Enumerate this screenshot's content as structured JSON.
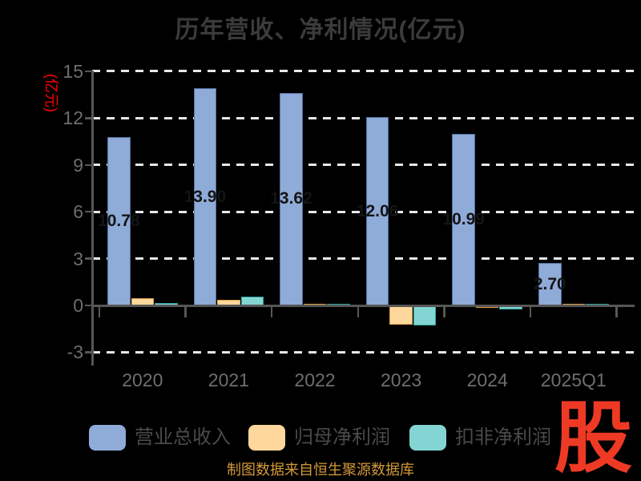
{
  "title": "历年营收、净利情况(亿元)",
  "y_axis_name": "(亿元)",
  "caption": "制图数据来自恒生聚源数据库",
  "logo_text": "股",
  "legend": {
    "items": [
      {
        "label": "营业总收入"
      },
      {
        "label": "归母净利润"
      },
      {
        "label": "扣非净利润"
      }
    ]
  },
  "colors": {
    "background": "#000000",
    "title": "#3b3b3b",
    "axis": "#565656",
    "tick_label": "#6e6e6e",
    "gridline": "#e8e8e8",
    "y_axis_name": "#ff0000",
    "caption": "#d49a3a",
    "logo": "#ee3a24",
    "value_label": "#141414",
    "legend_text": "#4a4a4a",
    "revenue_fill": "#8fabd8",
    "revenue_border": "#51719f",
    "profit_fill": "#fdd79b",
    "profit_border": "#dda04a",
    "deducted_fill": "#82d5d2",
    "deducted_border": "#2fa3a0"
  },
  "chart_data": {
    "type": "bar",
    "title": "历年营收、净利情况(亿元)",
    "ylabel": "(亿元)",
    "categories": [
      "2020",
      "2021",
      "2022",
      "2023",
      "2024",
      "2025Q1"
    ],
    "series": [
      {
        "name": "营业总收入",
        "values": [
          10.78,
          13.9,
          13.62,
          12.06,
          10.99,
          2.7
        ],
        "labels": [
          "10.78",
          "13.90",
          "13.62",
          "12.06",
          "10.99",
          "2.70"
        ],
        "show_labels": true
      },
      {
        "name": "归母净利润",
        "values": [
          0.45,
          0.38,
          0.1,
          -1.22,
          -0.17,
          0.12
        ],
        "show_labels": false
      },
      {
        "name": "扣非净利润",
        "values": [
          0.14,
          0.56,
          0.09,
          -1.3,
          -0.27,
          0.1
        ],
        "show_labels": false
      }
    ],
    "y_ticks": [
      15,
      12,
      9,
      6,
      3,
      0,
      -3
    ],
    "ylim": [
      -3,
      15
    ],
    "grid": "horizontal dashed gridlines, solid zero axis",
    "legend_position": "bottom"
  }
}
